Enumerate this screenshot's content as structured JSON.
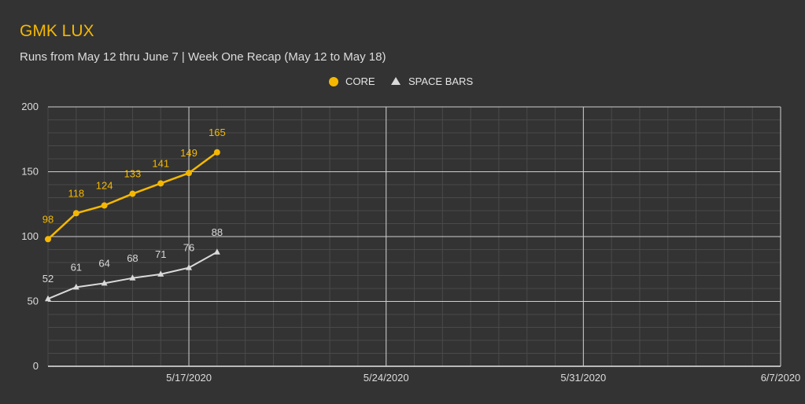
{
  "colors": {
    "background": "#333333",
    "core": "#f5b800",
    "space_bars": "#d9d9d9",
    "grid_major": "#cfcfcf",
    "grid_minor": "#4a4a4a"
  },
  "chart_data": {
    "type": "line",
    "title": "GMK LUX",
    "subtitle": "Runs from May 12 thru June 7 | Week One Recap (May 12 to May 18)",
    "legend_position": "top",
    "x": [
      "2020-05-12",
      "2020-05-13",
      "2020-05-14",
      "2020-05-15",
      "2020-05-16",
      "2020-05-17",
      "2020-05-18"
    ],
    "xlim": [
      "2020-05-12",
      "2020-06-07"
    ],
    "x_ticks": [
      "5/17/2020",
      "5/24/2020",
      "5/31/2020",
      "6/7/2020"
    ],
    "ylim": [
      0,
      200
    ],
    "y_ticks": [
      "0",
      "50",
      "100",
      "150",
      "200"
    ],
    "grid": true,
    "series": [
      {
        "name": "CORE",
        "marker": "circle",
        "values": [
          98,
          118,
          124,
          133,
          141,
          149,
          165
        ]
      },
      {
        "name": "SPACE BARS",
        "marker": "triangle",
        "values": [
          52,
          61,
          64,
          68,
          71,
          76,
          88
        ]
      }
    ]
  }
}
